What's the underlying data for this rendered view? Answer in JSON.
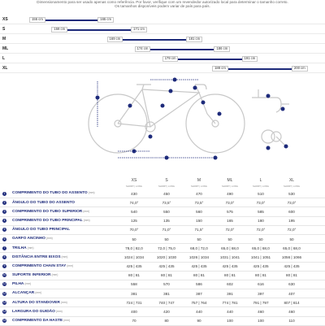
{
  "intro": {
    "line1": "Dimensionamento para ser usado apenas como referência. Por favor, verifique com um revendedor autorizado local para determinar o tamanho correto.",
    "line2": "Os tamanhos disponíveis podem variar de país para país."
  },
  "size_chart": {
    "unit": "cm",
    "accent": "#1d2a7a",
    "rows": [
      {
        "label": "XS",
        "min": "155 cm",
        "max": "165 cm"
      },
      {
        "label": "S",
        "min": "159 cm",
        "max": "171 cm"
      },
      {
        "label": "M",
        "min": "169 cm",
        "max": "181 cm"
      },
      {
        "label": "ML",
        "min": "174 cm",
        "max": "186 cm"
      },
      {
        "label": "L",
        "min": "179 cm",
        "max": "191 cm"
      },
      {
        "label": "XL",
        "min": "188 cm",
        "max": "200 cm"
      }
    ],
    "values": [
      [
        155,
        165
      ],
      [
        159,
        171
      ],
      [
        169,
        181
      ],
      [
        174,
        186
      ],
      [
        179,
        191
      ],
      [
        188,
        200
      ]
    ]
  },
  "figure": {
    "marker_numbers": [
      "1",
      "2",
      "3",
      "4",
      "5",
      "6",
      "7",
      "8",
      "9",
      "10",
      "11",
      "12",
      "13",
      "14",
      "15",
      "16",
      "17",
      "18",
      "19",
      "20"
    ],
    "icon": "bike-geometry-diagram"
  },
  "table": {
    "sizes": [
      "XS",
      "S",
      "M",
      "ML",
      "L",
      "XL"
    ],
    "short_long": "SHORT | LONG",
    "rows": [
      {
        "n": "1",
        "label": "COMPRIMENTO DO TUBO DO ASSENTO",
        "unit": "(mm)",
        "v": [
          "430",
          "450",
          "470",
          "490",
          "510",
          "530"
        ]
      },
      {
        "n": "2",
        "label": "ÂNGULO DO TUBO DO ASSENTO",
        "unit": "",
        "v": [
          "74,0°",
          "73,5°",
          "73,5°",
          "73,0°",
          "73,0°",
          "73,0°"
        ]
      },
      {
        "n": "3",
        "label": "COMPRIMENTO DO TUBO SUPERIOR",
        "unit": "(mm)",
        "v": [
          "540",
          "550",
          "560",
          "575",
          "585",
          "600"
        ]
      },
      {
        "n": "4",
        "label": "COMPRIMENTO DO TUBO PRINCIPAL",
        "unit": "(mm)",
        "v": [
          "125",
          "135",
          "150",
          "165",
          "180",
          "195"
        ]
      },
      {
        "n": "5",
        "label": "ÂNGULO DO TUBO PRINCIPAL",
        "unit": "",
        "v": [
          "70,0°",
          "71,0°",
          "71,5°",
          "72,0°",
          "72,0°",
          "72,0°"
        ]
      },
      {
        "n": "6",
        "label": "GARFO ANCINHO",
        "unit": "(mm)",
        "v": [
          "50",
          "50",
          "50",
          "50",
          "50",
          "50"
        ]
      },
      {
        "n": "7",
        "label": "TRILHA",
        "unit": "(mm)",
        "v": [
          "78,0 | 82,0",
          "72,0 | 75,0",
          "68,0 | 72,0",
          "65,0 | 68,0",
          "65,0 | 68,0",
          "65,0 | 68,0"
        ]
      },
      {
        "n": "8",
        "label": "DISTÂNCIA ENTRE EIXOS",
        "unit": "(mm)",
        "v": [
          "1024 | 1034",
          "1020 | 1030",
          "1026 | 1034",
          "1031 | 1041",
          "1041 | 1051",
          "1056 | 1066"
        ]
      },
      {
        "n": "9",
        "label": "COMPRIMENTO CHAIN STAY",
        "unit": "(mm)",
        "v": [
          "425 | 435",
          "425 | 435",
          "425 | 435",
          "425 | 435",
          "425 | 435",
          "425 | 435"
        ]
      },
      {
        "n": "10",
        "label": "SUPORTE INFERIOR",
        "unit": "(mm)",
        "v": [
          "80 | 81",
          "80 | 81",
          "80 | 81",
          "80 | 81",
          "80 | 81",
          "80 | 81"
        ]
      },
      {
        "n": "11",
        "label": "PILHA",
        "unit": "(mm)",
        "v": [
          "558",
          "570",
          "586",
          "602",
          "616",
          "630"
        ]
      },
      {
        "n": "12",
        "label": "ALCANÇAR",
        "unit": "(mm)",
        "v": [
          "381",
          "381",
          "387",
          "391",
          "397",
          "407"
        ]
      },
      {
        "n": "13",
        "label": "ALTURA DO STANDOVER",
        "unit": "(mm)",
        "v": [
          "724 | 731",
          "740 | 747",
          "757 | 764",
          "774 | 781",
          "791 | 797",
          "807 | 814"
        ]
      },
      {
        "n": "14",
        "label": "LARGURA DO GUIDÃO",
        "unit": "(mm)",
        "v": [
          "400",
          "420",
          "440",
          "440",
          "460",
          "460"
        ]
      },
      {
        "n": "15",
        "label": "COMPRIMENTO DA HASTE",
        "unit": "(mm)",
        "v": [
          "70",
          "80",
          "90",
          "100",
          "100",
          "110"
        ]
      }
    ]
  }
}
